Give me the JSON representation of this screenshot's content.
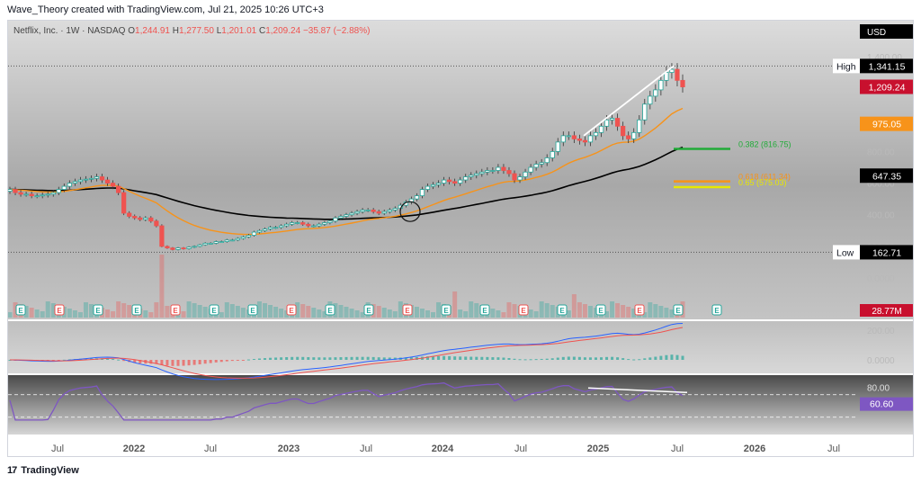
{
  "header": {
    "text": "Wave_Theory created with TradingView.com, Jul 21, 2025 10:26 UTC+3"
  },
  "footer": {
    "logo": "17",
    "brand": "TradingView"
  },
  "colors": {
    "up": "#26a69a",
    "down": "#ef5350",
    "ema_orange": "#f7931a",
    "ema_black": "#000000",
    "fib_green": "#22ab39",
    "fib_orange": "#f7931a",
    "fib_yellow": "#e8e800",
    "macd": "#2962ff",
    "signal": "#ef5350",
    "rsi": "#7e57c2",
    "trend_line": "#ffffff"
  },
  "chart_data": [
    {
      "type": "candlestick",
      "title": "Netflix, Inc. · 1W · NASDAQ",
      "ohlc_label": {
        "O": "1,244.91",
        "H": "1,277.50",
        "L": "1,201.01",
        "C": "1,209.24",
        "change": "−35.87 (−2.88%)"
      },
      "currency": "USD",
      "x_ticks": [
        "Jul",
        "2022",
        "Jul",
        "2023",
        "Jul",
        "2024",
        "Jul",
        "2025",
        "Jul",
        "2026",
        "Jul"
      ],
      "y_ticks": [
        "1,400.00",
        "1,200.00",
        "1,000.00",
        "800.00",
        "600.00",
        "400.00",
        "200.00",
        "0.0000"
      ],
      "ylim": [
        0,
        1400
      ],
      "price_labels": [
        {
          "label": "High",
          "value": "1,341.15"
        },
        {
          "label": "",
          "value": "1,209.24"
        },
        {
          "label": "",
          "value": "975.05"
        },
        {
          "label": "",
          "value": "647.35"
        },
        {
          "label": "Low",
          "value": "162.71"
        }
      ],
      "fib_levels": [
        {
          "label": "0.382 (816.75)",
          "value": 816.75
        },
        {
          "label": "0.618 (611.34)",
          "value": 611.34
        },
        {
          "label": "0.65 (575.03)",
          "value": 575.03
        }
      ],
      "earnings_markers": [
        "E",
        "E",
        "E",
        "E",
        "E",
        "E",
        "E",
        "E",
        "E",
        "E",
        "E",
        "E",
        "E",
        "E",
        "E",
        "E",
        "E",
        "E",
        "E"
      ],
      "volume_label": "28.77M",
      "close_series_approx": [
        560,
        540,
        530,
        530,
        520,
        520,
        525,
        530,
        540,
        560,
        580,
        600,
        610,
        620,
        625,
        630,
        640,
        620,
        600,
        580,
        540,
        410,
        390,
        380,
        370,
        380,
        360,
        330,
        200,
        190,
        180,
        190,
        185,
        195,
        200,
        210,
        220,
        220,
        230,
        230,
        240,
        240,
        250,
        260,
        270,
        290,
        300,
        310,
        320,
        320,
        330,
        340,
        350,
        350,
        340,
        330,
        330,
        340,
        350,
        360,
        380,
        390,
        400,
        410,
        420,
        430,
        430,
        420,
        410,
        420,
        430,
        440,
        460,
        480,
        500,
        520,
        560,
        580,
        590,
        600,
        620,
        610,
        600,
        620,
        640,
        650,
        660,
        670,
        680,
        680,
        700,
        680,
        660,
        620,
        640,
        670,
        700,
        720,
        730,
        760,
        800,
        860,
        900,
        900,
        880,
        870,
        860,
        900,
        920,
        960,
        1000,
        1010,
        960,
        900,
        880,
        920,
        1000,
        1100,
        1150,
        1190,
        1250,
        1300,
        1320,
        1250,
        1209
      ]
    },
    {
      "type": "line",
      "title": "MACD",
      "y_ticks": [
        "200.00",
        "0.0000"
      ],
      "series": [
        {
          "values": []
        },
        {
          "values": []
        }
      ]
    },
    {
      "type": "line",
      "title": "RSI",
      "y_ticks": [
        "80.00",
        "60.60"
      ],
      "rsi_last": "60.60"
    }
  ]
}
